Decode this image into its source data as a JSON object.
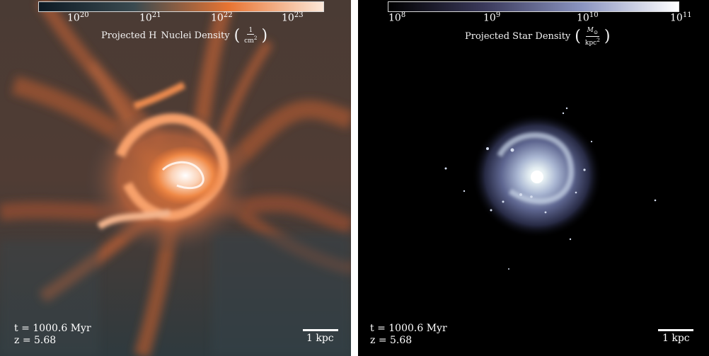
{
  "gas_panel": {
    "colorbar": {
      "colormap": "dark-teal-to-orange-to-white",
      "colors": [
        "#0d1a24",
        "#3a4a50",
        "#e87432",
        "#fde8d8"
      ],
      "ticks": [
        {
          "base": "10",
          "exp": "20"
        },
        {
          "base": "10",
          "exp": "21"
        },
        {
          "base": "10",
          "exp": "22"
        },
        {
          "base": "10",
          "exp": "23"
        }
      ],
      "title": "Projected H",
      "title_suffix": "Nuclei Density",
      "unit_num": "1",
      "unit_den": "cm",
      "unit_den_exp": "2"
    },
    "time_text": "t = 1000.6 Myr",
    "redshift_text": "z = 5.68",
    "scale_label": "1 kpc"
  },
  "star_panel": {
    "colorbar": {
      "colormap": "black-to-lavender-to-white",
      "colors": [
        "#000000",
        "#3b3a5c",
        "#8a94c0",
        "#ffffff"
      ],
      "ticks": [
        {
          "base": "10",
          "exp": "8"
        },
        {
          "base": "10",
          "exp": "9"
        },
        {
          "base": "10",
          "exp": "10"
        },
        {
          "base": "10",
          "exp": "11"
        }
      ],
      "title": "Projected Star Density",
      "unit_num": "M",
      "unit_num_sub": "⊙",
      "unit_den": "kpc",
      "unit_den_exp": "2"
    },
    "time_text": "t = 1000.6 Myr",
    "redshift_text": "z = 5.68",
    "scale_label": "1 kpc"
  }
}
